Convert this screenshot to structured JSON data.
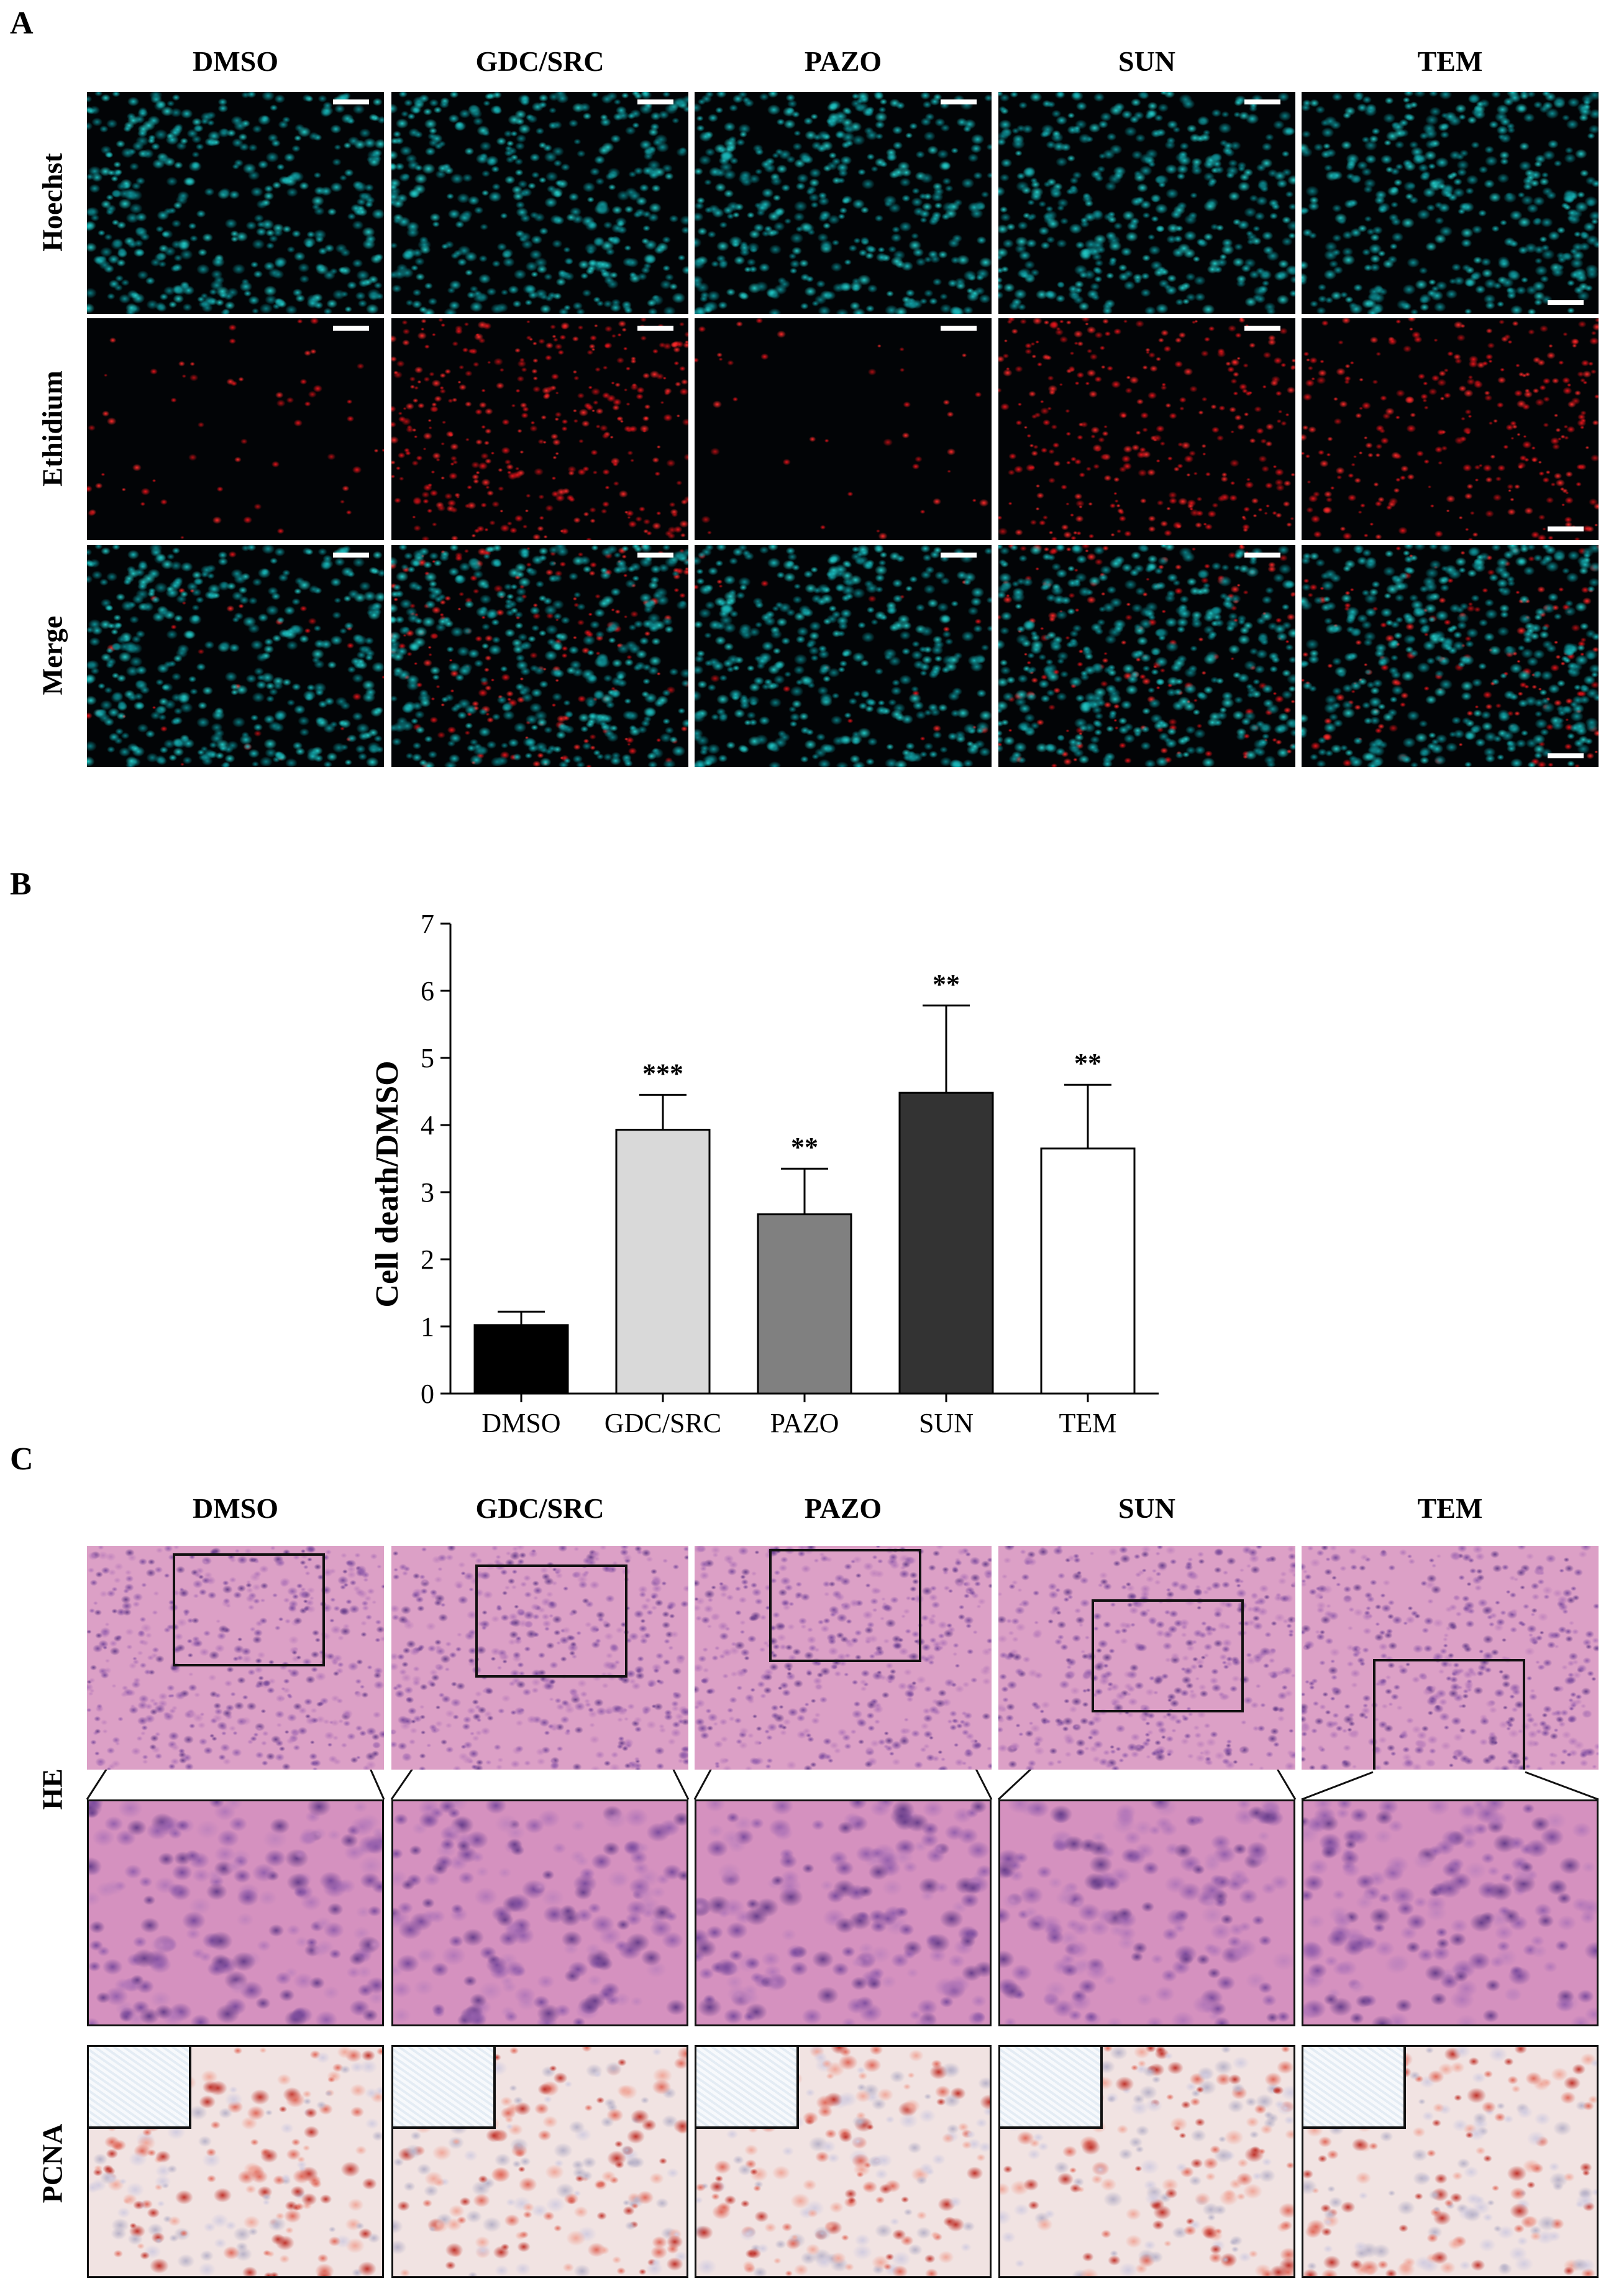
{
  "panels": {
    "a": "A",
    "b": "B",
    "c": "C"
  },
  "columns": [
    "DMSO",
    "GDC/SRC",
    "PAZO",
    "SUN",
    "TEM"
  ],
  "panel_a_rows": [
    "Hoechst",
    "Ethidium",
    "Merge"
  ],
  "panel_c_rows": [
    "HE",
    "PCNA"
  ],
  "colors": {
    "hoechst": "#0f9ea4",
    "ethidium": "#d4141a",
    "he_bg": "#cf7fb0",
    "pcna_bg": "#efdede"
  },
  "chart_data": {
    "type": "bar",
    "categories": [
      "DMSO",
      "GDC/SRC",
      "PAZO",
      "SUN",
      "TEM"
    ],
    "values": [
      1.02,
      3.93,
      2.67,
      4.48,
      3.65
    ],
    "errors": [
      0.2,
      0.52,
      0.68,
      1.3,
      0.95
    ],
    "significance": [
      "",
      "***",
      "**",
      "**",
      "**"
    ],
    "bar_colors": [
      "#000000",
      "#d9d9d9",
      "#808080",
      "#333333",
      "#ffffff"
    ],
    "ylabel": "Cell death/DMSO",
    "ylim": [
      0,
      7
    ],
    "yticks": [
      "0",
      "1",
      "2",
      "3",
      "4",
      "5",
      "6",
      "7"
    ]
  }
}
